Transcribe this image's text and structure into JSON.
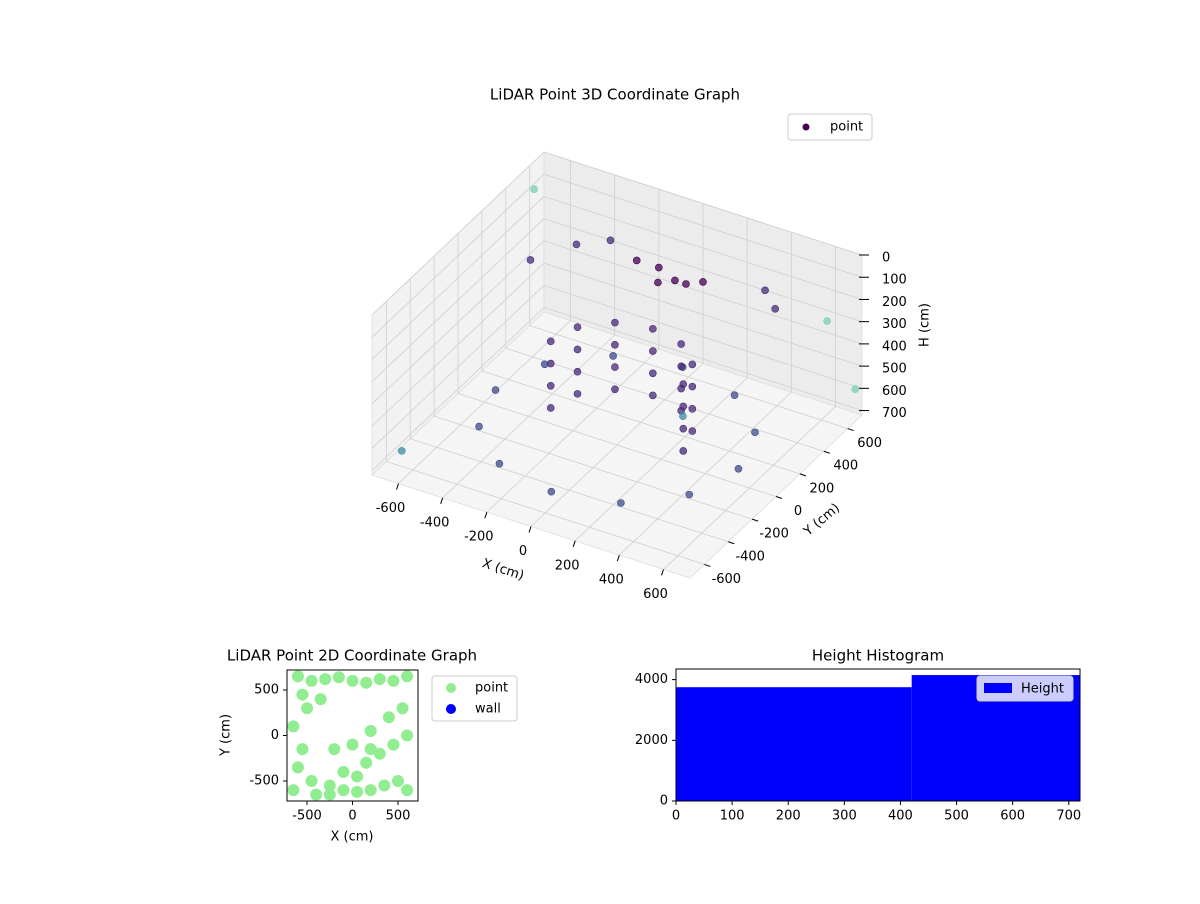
{
  "chart_data": [
    {
      "type": "scatter3d",
      "title": "LiDAR Point 3D Coordinate Graph",
      "xlabel": "X (cm)",
      "ylabel": "Y (cm)",
      "zlabel": "H (cm)",
      "xlim": [
        -720,
        720
      ],
      "ylim": [
        -720,
        720
      ],
      "zlim": [
        0,
        720
      ],
      "z_inverted": true,
      "xticks": [
        -600,
        -400,
        -200,
        0,
        200,
        400,
        600
      ],
      "yticks": [
        -600,
        -400,
        -200,
        0,
        200,
        400,
        600
      ],
      "zticks": [
        0,
        100,
        200,
        300,
        400,
        500,
        600,
        700
      ],
      "series": [
        {
          "name": "point",
          "color": "#440154",
          "x": [
            550,
            476,
            275,
            0,
            -275,
            -476,
            -550,
            -476,
            -275,
            0,
            275,
            476,
            300,
            300,
            300,
            300,
            260,
            260,
            260,
            260,
            150,
            150,
            150,
            150,
            0,
            0,
            0,
            0,
            -150,
            -150,
            -150,
            -150,
            -260,
            -260,
            -260,
            -260,
            -300,
            -300,
            -300,
            -300,
            100,
            0,
            -100,
            150,
            50,
            200,
            -400,
            -500,
            -300,
            500,
            400,
            -700,
            650,
            700,
            -650,
            600
          ],
          "y": [
            0,
            275,
            476,
            550,
            476,
            275,
            0,
            -275,
            -476,
            -550,
            -476,
            -275,
            0,
            0,
            0,
            0,
            150,
            150,
            150,
            150,
            260,
            260,
            260,
            260,
            300,
            300,
            300,
            300,
            260,
            260,
            260,
            260,
            150,
            150,
            150,
            150,
            0,
            0,
            0,
            0,
            300,
            350,
            350,
            300,
            250,
            350,
            400,
            200,
            500,
            400,
            500,
            600,
            -650,
            700,
            -600,
            650
          ],
          "values": [
            650,
            650,
            650,
            650,
            650,
            650,
            650,
            650,
            650,
            650,
            650,
            650,
            350,
            450,
            550,
            650,
            350,
            450,
            550,
            650,
            350,
            450,
            550,
            650,
            350,
            450,
            550,
            650,
            350,
            450,
            550,
            650,
            350,
            450,
            550,
            650,
            350,
            450,
            550,
            650,
            100,
            100,
            100,
            100,
            100,
            100,
            150,
            150,
            150,
            150,
            150,
            100,
            50,
            600,
            650,
            300
          ],
          "colors": [
            "#3e4a89",
            "#3e4a89",
            "#3e4a89",
            "#3e4a89",
            "#3e4a89",
            "#3e4a89",
            "#3e4a89",
            "#3e4a89",
            "#3e4a89",
            "#3e4a89",
            "#3e4a89",
            "#3e4a89",
            "#482878",
            "#482878",
            "#482878",
            "#482878",
            "#482878",
            "#482878",
            "#482878",
            "#482878",
            "#482878",
            "#482878",
            "#482878",
            "#482878",
            "#482878",
            "#482878",
            "#482878",
            "#482878",
            "#482878",
            "#482878",
            "#482878",
            "#482878",
            "#482878",
            "#482878",
            "#482878",
            "#482878",
            "#482878",
            "#482878",
            "#482878",
            "#482878",
            "#440154",
            "#440154",
            "#440154",
            "#440154",
            "#440154",
            "#440154",
            "#472c7a",
            "#472c7a",
            "#472c7a",
            "#472c7a",
            "#472c7a",
            "#7ad0b5",
            "#3a8ca0",
            "#7ad0b5",
            "#3a8ca0",
            "#7ad0b5"
          ]
        }
      ]
    },
    {
      "type": "scatter",
      "title": "LiDAR Point 2D Coordinate Graph",
      "xlabel": "X (cm)",
      "ylabel": "Y (cm)",
      "xlim": [
        -720,
        720
      ],
      "ylim": [
        -720,
        720
      ],
      "xticks": [
        -500,
        0,
        500
      ],
      "yticks": [
        -500,
        0,
        500
      ],
      "series": [
        {
          "name": "point",
          "color": "#90ee90",
          "x": [
            -600,
            -450,
            -300,
            -150,
            0,
            150,
            300,
            450,
            600,
            -550,
            -350,
            -500,
            -650,
            -600,
            -450,
            -250,
            -100,
            50,
            200,
            350,
            500,
            600,
            150,
            300,
            450,
            600,
            -100,
            50,
            200,
            400,
            550,
            -200,
            0,
            200,
            -550,
            -650,
            -400,
            -250
          ],
          "y": [
            650,
            600,
            620,
            640,
            600,
            580,
            620,
            600,
            650,
            450,
            400,
            300,
            100,
            -350,
            -500,
            -550,
            -600,
            -620,
            -600,
            -550,
            -500,
            -600,
            -300,
            -200,
            -100,
            0,
            -400,
            -450,
            -150,
            200,
            300,
            -150,
            -100,
            50,
            -150,
            -600,
            -650,
            -650
          ]
        },
        {
          "name": "wall",
          "color": "#0000ff",
          "x": [],
          "y": []
        }
      ]
    },
    {
      "type": "histogram",
      "title": "Height Histogram",
      "bins": [
        0,
        420,
        720
      ],
      "values": [
        3750,
        4150
      ],
      "series_name": "Height",
      "color": "#0000ff",
      "xlim": [
        0,
        720
      ],
      "ylim": [
        0,
        4350
      ],
      "xticks": [
        0,
        100,
        200,
        300,
        400,
        500,
        600,
        700
      ],
      "yticks": [
        0,
        2000,
        4000
      ]
    }
  ]
}
